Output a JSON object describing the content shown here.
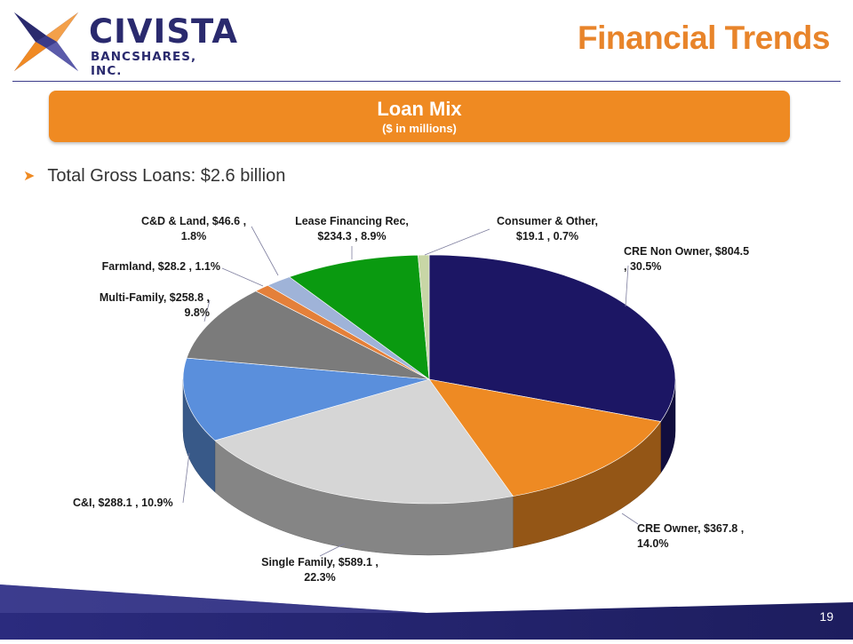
{
  "header": {
    "logo_name": "CIVISTA",
    "logo_sub": "BANCSHARES, INC.",
    "title": "Financial Trends"
  },
  "banner": {
    "title": "Loan Mix",
    "subtitle": "($ in millions)"
  },
  "bullet": "Total Gross Loans: $2.6 billion",
  "page_number": "19",
  "colors": {
    "accent_orange": "#ef8a22",
    "brand_navy": "#2a2a6e"
  },
  "chart_data": {
    "type": "pie",
    "style": "3d",
    "title": "Loan Mix",
    "units": "$ in millions",
    "slices": [
      {
        "label": "CRE Non Owner",
        "value": 804.5,
        "percent": 30.5,
        "color": "#1c1664",
        "label_lines": [
          "CRE Non Owner, $804.5",
          ", 30.5%"
        ]
      },
      {
        "label": "CRE Owner",
        "value": 367.8,
        "percent": 14.0,
        "color": "#ee8a23",
        "label_lines": [
          "CRE Owner, $367.8 ,",
          "14.0%"
        ]
      },
      {
        "label": "Single Family",
        "value": 589.1,
        "percent": 22.3,
        "color": "#d6d6d6",
        "label_lines": [
          "Single Family, $589.1 ,",
          "22.3%"
        ]
      },
      {
        "label": "C&I",
        "value": 288.1,
        "percent": 10.9,
        "color": "#5a8fdc",
        "label_lines": [
          "C&I, $288.1 , 10.9%"
        ]
      },
      {
        "label": "Multi-Family",
        "value": 258.8,
        "percent": 9.8,
        "color": "#7b7b7b",
        "label_lines": [
          "Multi-Family, $258.8 ,",
          "9.8%"
        ]
      },
      {
        "label": "Farmland",
        "value": 28.2,
        "percent": 1.1,
        "color": "#e4803a",
        "label_lines": [
          "Farmland, $28.2 , 1.1%"
        ]
      },
      {
        "label": "C&D & Land",
        "value": 46.6,
        "percent": 1.8,
        "color": "#9fb3d8",
        "label_lines": [
          "C&D & Land, $46.6 ,",
          "1.8%"
        ]
      },
      {
        "label": "Lease Financing Rec",
        "value": 234.3,
        "percent": 8.9,
        "color": "#0a9a10",
        "label_lines": [
          "Lease Financing Rec,",
          "$234.3 , 8.9%"
        ]
      },
      {
        "label": "Consumer & Other",
        "value": 19.1,
        "percent": 0.7,
        "color": "#c8d6a6",
        "label_lines": [
          "Consumer & Other,",
          "$19.1 , 0.7%"
        ]
      }
    ]
  }
}
